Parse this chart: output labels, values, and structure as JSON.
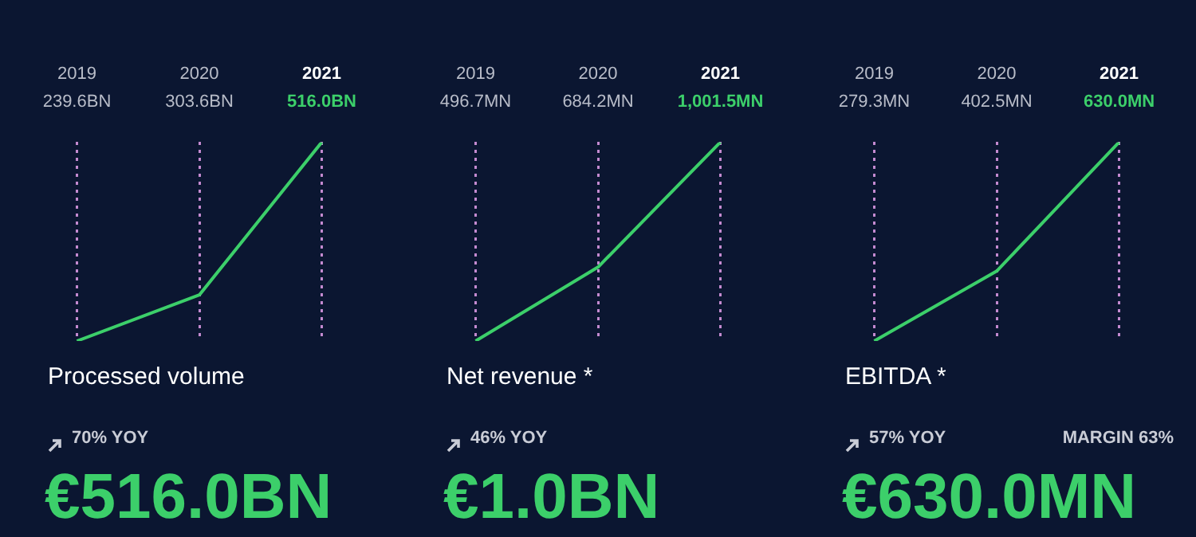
{
  "chart_data": [
    {
      "type": "line",
      "title": "Processed volume",
      "categories": [
        "2019",
        "2020",
        "2021"
      ],
      "series": [
        {
          "color": "#3ccf6a",
          "values": [
            239.6,
            303.6,
            516.0
          ],
          "value_labels": [
            "239.6BN",
            "303.6BN",
            "516.0BN"
          ]
        }
      ],
      "grid": "x",
      "marker": "none",
      "line_style": "solid",
      "annotations": [
        "70% YOY",
        "€516.0BN"
      ]
    },
    {
      "type": "line",
      "title": "Net revenue *",
      "categories": [
        "2019",
        "2020",
        "2021"
      ],
      "series": [
        {
          "color": "#3ccf6a",
          "values": [
            496.7,
            684.2,
            1001.5
          ],
          "value_labels": [
            "496.7MN",
            "684.2MN",
            "1,001.5MN"
          ]
        }
      ],
      "grid": "x",
      "marker": "none",
      "line_style": "solid",
      "annotations": [
        "46% YOY",
        "€1.0BN"
      ]
    },
    {
      "type": "line",
      "title": "EBITDA *",
      "categories": [
        "2019",
        "2020",
        "2021"
      ],
      "series": [
        {
          "color": "#3ccf6a",
          "values": [
            279.3,
            402.5,
            630.0
          ],
          "value_labels": [
            "279.3MN",
            "402.5MN",
            "630.0MN"
          ]
        }
      ],
      "grid": "x",
      "marker": "none",
      "line_style": "solid",
      "annotations": [
        "57% YOY",
        "MARGIN 63%",
        "€630.0MN"
      ]
    }
  ]
}
